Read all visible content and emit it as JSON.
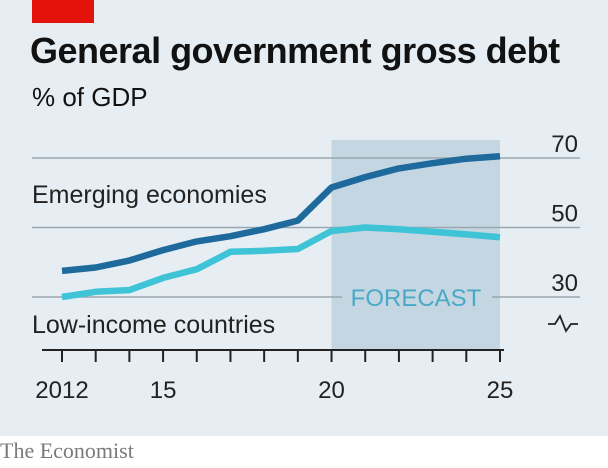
{
  "header": {
    "title": "General government gross debt",
    "subtitle": "% of GDP"
  },
  "footer": {
    "source": "The Economist"
  },
  "colors": {
    "background": "#e6eef3",
    "forecast_shade": "#c3d6e2",
    "emerging": "#1f6a9c",
    "low_income": "#3ec4d6",
    "brand_red": "#e3120b"
  },
  "chart_data": {
    "type": "line",
    "title": "General government gross debt",
    "subtitle": "% of GDP",
    "xlabel": "",
    "ylabel": "",
    "xlim": [
      2012,
      2025
    ],
    "ylim": [
      30,
      70
    ],
    "y_axis_broken": true,
    "y_ticks": [
      30,
      50,
      70
    ],
    "x_ticks": [
      2012,
      2013,
      2014,
      2015,
      2016,
      2017,
      2018,
      2019,
      2020,
      2021,
      2022,
      2023,
      2024,
      2025
    ],
    "x_tick_labels": [
      {
        "x": 2012,
        "label": "2012"
      },
      {
        "x": 2015,
        "label": "15"
      },
      {
        "x": 2020,
        "label": "20"
      },
      {
        "x": 2025,
        "label": "25"
      }
    ],
    "grid": "horizontal",
    "forecast": {
      "start": 2020,
      "end": 2025,
      "label": "FORECAST"
    },
    "series": [
      {
        "name": "Emerging economies",
        "color": "#1f6a9c",
        "x": [
          2012,
          2013,
          2014,
          2015,
          2016,
          2017,
          2018,
          2019,
          2020,
          2021,
          2022,
          2023,
          2024,
          2025
        ],
        "values": [
          37.5,
          38.5,
          40.5,
          43.5,
          46.0,
          47.5,
          49.5,
          52.0,
          61.5,
          64.5,
          67.0,
          68.5,
          69.8,
          70.5
        ]
      },
      {
        "name": "Low-income countries",
        "color": "#3ec4d6",
        "x": [
          2012,
          2013,
          2014,
          2015,
          2016,
          2017,
          2018,
          2019,
          2020,
          2021,
          2022,
          2023,
          2024,
          2025
        ],
        "values": [
          30.0,
          31.5,
          32.0,
          35.5,
          38.0,
          43.0,
          43.3,
          43.8,
          49.0,
          50.0,
          49.5,
          48.8,
          48.0,
          47.2
        ]
      }
    ]
  }
}
